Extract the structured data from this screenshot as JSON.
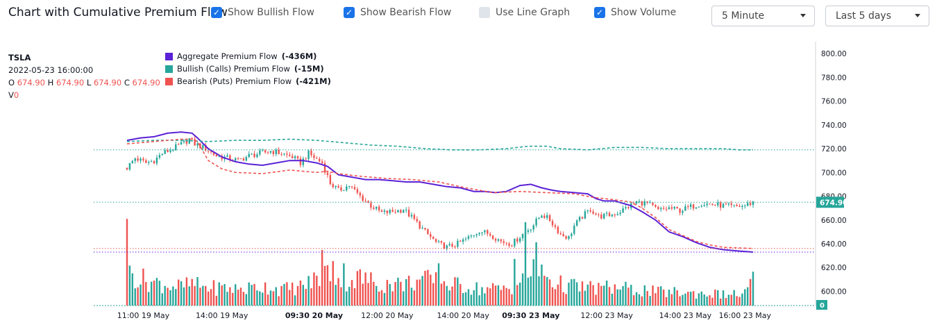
{
  "header": {
    "title": "Chart with Cumulative Premium Flow",
    "toggles": [
      {
        "label": "Show Bullish Flow",
        "checked": true
      },
      {
        "label": "Show Bearish Flow",
        "checked": true
      },
      {
        "label": "Use Line Graph",
        "checked": false
      },
      {
        "label": "Show Volume",
        "checked": true
      }
    ],
    "interval": "5 Minute",
    "range": "Last 5 days"
  },
  "legend": {
    "symbol": "TSLA",
    "datetime": "2022-05-23 16:00:00",
    "o_label": "O",
    "o": "674.90",
    "h_label": "H",
    "h": "674.90",
    "l_label": "L",
    "l": "674.90",
    "c_label": "C",
    "c": "674.90",
    "v_label": "V",
    "v": "0"
  },
  "colors": {
    "aggregate": "#5b21d6",
    "bullish": "#26a69a",
    "bearish": "#ef5350",
    "check": "#1a73e8"
  },
  "chart_data": {
    "type": "candlestick",
    "symbol": "TSLA",
    "ylim": [
      588,
      810
    ],
    "y_ticks": [
      "800.00",
      "780.00",
      "760.00",
      "740.00",
      "720.00",
      "700.00",
      "680.00",
      "660.00",
      "640.00",
      "620.00",
      "600.00"
    ],
    "y_tick_values": [
      800,
      780,
      760,
      740,
      720,
      700,
      680,
      660,
      640,
      620,
      600
    ],
    "x_labels": [
      "11:00 19 May",
      "14:00 19 May",
      "09:30 20 May",
      "12:00 20 May",
      "14:00 20 May",
      "09:30 23 May",
      "12:00 23 May",
      "14:00 23 May",
      "16:00 23 May"
    ],
    "x_label_bold": [
      false,
      false,
      true,
      false,
      false,
      true,
      false,
      false,
      false
    ],
    "x_label_bar_index": [
      6,
      35,
      69,
      96,
      124,
      149,
      177,
      206,
      228
    ],
    "bar_count": 232,
    "last_price": 674.9,
    "last_price_label": "674.90",
    "volume_label": "0",
    "price_path": [
      [
        0,
        704
      ],
      [
        3,
        712
      ],
      [
        7,
        708
      ],
      [
        10,
        710
      ],
      [
        13,
        716
      ],
      [
        17,
        720
      ],
      [
        21,
        725
      ],
      [
        23,
        728
      ],
      [
        25,
        724
      ],
      [
        29,
        720
      ],
      [
        33,
        714
      ],
      [
        37,
        712
      ],
      [
        41,
        710
      ],
      [
        45,
        714
      ],
      [
        49,
        716
      ],
      [
        53,
        718
      ],
      [
        57,
        716
      ],
      [
        61,
        713
      ],
      [
        64,
        708
      ],
      [
        67,
        716
      ],
      [
        70,
        711
      ],
      [
        72,
        708
      ],
      [
        75,
        691
      ],
      [
        78,
        685
      ],
      [
        82,
        689
      ],
      [
        86,
        680
      ],
      [
        90,
        672
      ],
      [
        94,
        666
      ],
      [
        98,
        667
      ],
      [
        102,
        669
      ],
      [
        106,
        660
      ],
      [
        110,
        650
      ],
      [
        114,
        641
      ],
      [
        118,
        637
      ],
      [
        122,
        640
      ],
      [
        126,
        645
      ],
      [
        130,
        651
      ],
      [
        134,
        648
      ],
      [
        138,
        642
      ],
      [
        142,
        640
      ],
      [
        146,
        648
      ],
      [
        150,
        656
      ],
      [
        153,
        665
      ],
      [
        156,
        660
      ],
      [
        160,
        648
      ],
      [
        163,
        645
      ],
      [
        165,
        655
      ],
      [
        168,
        663
      ],
      [
        171,
        669
      ],
      [
        174,
        663
      ],
      [
        178,
        664
      ],
      [
        181,
        666
      ],
      [
        184,
        670
      ],
      [
        188,
        675
      ],
      [
        192,
        674
      ],
      [
        196,
        668
      ],
      [
        200,
        670
      ],
      [
        204,
        668
      ],
      [
        208,
        671
      ],
      [
        212,
        674
      ],
      [
        216,
        673
      ],
      [
        220,
        672
      ],
      [
        224,
        671
      ],
      [
        228,
        672
      ],
      [
        231,
        675
      ]
    ],
    "volume_path": [
      [
        0,
        38
      ],
      [
        2,
        28
      ],
      [
        5,
        24
      ],
      [
        8,
        22
      ],
      [
        12,
        20
      ],
      [
        16,
        18
      ],
      [
        20,
        17
      ],
      [
        24,
        19
      ],
      [
        28,
        17
      ],
      [
        32,
        16
      ],
      [
        36,
        16
      ],
      [
        40,
        15
      ],
      [
        44,
        15
      ],
      [
        48,
        17
      ],
      [
        52,
        17
      ],
      [
        56,
        15
      ],
      [
        60,
        15
      ],
      [
        64,
        17
      ],
      [
        67,
        20
      ],
      [
        70,
        24
      ],
      [
        72,
        28
      ],
      [
        74,
        30
      ],
      [
        78,
        24
      ],
      [
        82,
        22
      ],
      [
        86,
        25
      ],
      [
        90,
        22
      ],
      [
        94,
        19
      ],
      [
        98,
        20
      ],
      [
        102,
        19
      ],
      [
        106,
        22
      ],
      [
        110,
        23
      ],
      [
        114,
        22
      ],
      [
        118,
        20
      ],
      [
        122,
        18
      ],
      [
        126,
        17
      ],
      [
        130,
        15
      ],
      [
        134,
        15
      ],
      [
        138,
        15
      ],
      [
        142,
        17
      ],
      [
        146,
        22
      ],
      [
        148,
        28
      ],
      [
        150,
        38
      ],
      [
        152,
        32
      ],
      [
        154,
        28
      ],
      [
        158,
        20
      ],
      [
        162,
        18
      ],
      [
        166,
        17
      ],
      [
        170,
        16
      ],
      [
        174,
        16
      ],
      [
        178,
        16
      ],
      [
        182,
        16
      ],
      [
        186,
        14
      ],
      [
        190,
        14
      ],
      [
        196,
        12
      ],
      [
        202,
        12
      ],
      [
        208,
        11
      ],
      [
        214,
        11
      ],
      [
        220,
        10
      ],
      [
        226,
        10
      ],
      [
        229,
        13
      ],
      [
        231,
        24
      ]
    ],
    "volume_spikes": [
      [
        0,
        78
      ],
      [
        1,
        36
      ],
      [
        72,
        50
      ],
      [
        76,
        40
      ],
      [
        80,
        38
      ],
      [
        115,
        38
      ],
      [
        143,
        42
      ],
      [
        147,
        75
      ],
      [
        151,
        57
      ]
    ],
    "series": [
      {
        "name": "Aggregate Premium Flow",
        "value_label": "(-436M)",
        "style": "solid",
        "points": [
          [
            0,
            727
          ],
          [
            5,
            729
          ],
          [
            10,
            730
          ],
          [
            15,
            733
          ],
          [
            20,
            734
          ],
          [
            24,
            733
          ],
          [
            26,
            729
          ],
          [
            30,
            720
          ],
          [
            35,
            713
          ],
          [
            40,
            709
          ],
          [
            45,
            707
          ],
          [
            50,
            706
          ],
          [
            55,
            708
          ],
          [
            60,
            710
          ],
          [
            65,
            710
          ],
          [
            70,
            708
          ],
          [
            74,
            705
          ],
          [
            78,
            698
          ],
          [
            83,
            696
          ],
          [
            88,
            694
          ],
          [
            93,
            694
          ],
          [
            98,
            693
          ],
          [
            103,
            692
          ],
          [
            108,
            692
          ],
          [
            113,
            690
          ],
          [
            118,
            688
          ],
          [
            123,
            687
          ],
          [
            128,
            684
          ],
          [
            132,
            684
          ],
          [
            136,
            683
          ],
          [
            140,
            684
          ],
          [
            145,
            689
          ],
          [
            149,
            690
          ],
          [
            153,
            687
          ],
          [
            157,
            685
          ],
          [
            160,
            684
          ],
          [
            165,
            683
          ],
          [
            170,
            682
          ],
          [
            173,
            678
          ],
          [
            176,
            676
          ],
          [
            180,
            676
          ],
          [
            186,
            672
          ],
          [
            190,
            667
          ],
          [
            195,
            660
          ],
          [
            200,
            650
          ],
          [
            205,
            646
          ],
          [
            210,
            641
          ],
          [
            215,
            637
          ],
          [
            220,
            635
          ],
          [
            225,
            634
          ],
          [
            231,
            633
          ]
        ]
      },
      {
        "name": "Bullish (Calls) Premium Flow",
        "value_label": "(-15M)",
        "style": "dashed",
        "points": [
          [
            0,
            726
          ],
          [
            10,
            727
          ],
          [
            20,
            727
          ],
          [
            30,
            726
          ],
          [
            40,
            727
          ],
          [
            50,
            727
          ],
          [
            60,
            728
          ],
          [
            70,
            727
          ],
          [
            80,
            725
          ],
          [
            90,
            723
          ],
          [
            100,
            722
          ],
          [
            110,
            720
          ],
          [
            120,
            719
          ],
          [
            130,
            719
          ],
          [
            140,
            720
          ],
          [
            148,
            722
          ],
          [
            155,
            722
          ],
          [
            160,
            720
          ],
          [
            170,
            719
          ],
          [
            180,
            721
          ],
          [
            190,
            721
          ],
          [
            200,
            720
          ],
          [
            210,
            720
          ],
          [
            220,
            720
          ],
          [
            226,
            719
          ],
          [
            231,
            719
          ]
        ]
      },
      {
        "name": "Bearish (Puts) Premium Flow",
        "value_label": "(-421M)",
        "style": "dashed",
        "points": [
          [
            0,
            724
          ],
          [
            10,
            726
          ],
          [
            20,
            728
          ],
          [
            24,
            728
          ],
          [
            26,
            726
          ],
          [
            30,
            710
          ],
          [
            35,
            703
          ],
          [
            40,
            700
          ],
          [
            50,
            699
          ],
          [
            60,
            702
          ],
          [
            70,
            700
          ],
          [
            74,
            701
          ],
          [
            78,
            699
          ],
          [
            85,
            697
          ],
          [
            90,
            696
          ],
          [
            95,
            695
          ],
          [
            105,
            694
          ],
          [
            115,
            692
          ],
          [
            125,
            687
          ],
          [
            135,
            683
          ],
          [
            145,
            684
          ],
          [
            155,
            683
          ],
          [
            165,
            682
          ],
          [
            172,
            679
          ],
          [
            180,
            677
          ],
          [
            186,
            675
          ],
          [
            190,
            670
          ],
          [
            195,
            662
          ],
          [
            200,
            652
          ],
          [
            205,
            647
          ],
          [
            210,
            642
          ],
          [
            215,
            639
          ],
          [
            220,
            637
          ],
          [
            231,
            636
          ]
        ]
      }
    ],
    "reference_lines": [
      {
        "value": 719,
        "color": "bullish"
      },
      {
        "value": 636,
        "color": "bearish"
      },
      {
        "value": 633,
        "color": "aggregate"
      },
      {
        "value": 674.9,
        "color": "bullish"
      }
    ]
  }
}
